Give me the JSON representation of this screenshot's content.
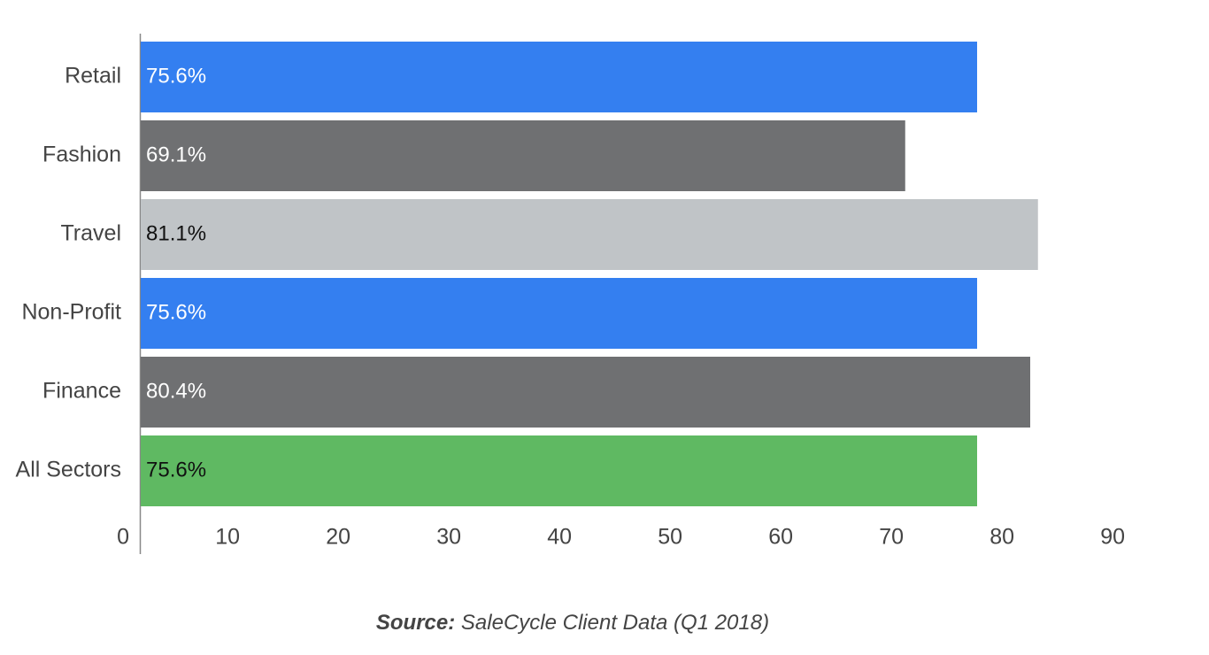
{
  "chart_data": {
    "type": "bar",
    "orientation": "horizontal",
    "categories": [
      "Retail",
      "Fashion",
      "Travel",
      "Non-Profit",
      "Finance",
      "All Sectors"
    ],
    "values": [
      75.6,
      69.1,
      81.1,
      75.6,
      80.4,
      75.6
    ],
    "value_labels": [
      "75.6%",
      "69.1%",
      "81.1%",
      "75.6%",
      "80.4%",
      "75.6%"
    ],
    "colors": [
      "#347ff0",
      "#6f7072",
      "#c0c4c7",
      "#347ff0",
      "#6f7072",
      "#5fb962"
    ],
    "xlim": [
      0,
      90
    ],
    "xticks": [
      0,
      10,
      20,
      30,
      40,
      50,
      60,
      70,
      80,
      90
    ],
    "grid": false,
    "source_label": "Source:",
    "source": "SaleCycle Client Data (Q1 2018)"
  }
}
